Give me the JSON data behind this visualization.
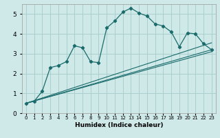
{
  "xlabel": "Humidex (Indice chaleur)",
  "bg_color": "#cfe8e8",
  "grid_color": "#aacfcf",
  "line_color": "#1a6b6b",
  "line1_x": [
    0,
    1,
    2,
    3,
    4,
    5,
    6,
    7,
    8,
    9,
    10,
    11,
    12,
    13,
    14,
    15,
    16,
    17,
    18,
    19,
    20,
    21,
    22,
    23
  ],
  "line1_y": [
    0.5,
    0.6,
    1.1,
    2.3,
    2.4,
    2.6,
    3.4,
    3.3,
    2.6,
    2.55,
    4.3,
    4.65,
    5.1,
    5.3,
    5.05,
    4.9,
    4.5,
    4.4,
    4.1,
    3.35,
    4.05,
    4.0,
    3.5,
    3.2
  ],
  "line2_x": [
    0,
    23
  ],
  "line2_y": [
    0.5,
    3.2
  ],
  "line3_x": [
    0,
    23
  ],
  "line3_y": [
    0.5,
    3.1
  ],
  "line4_x": [
    0,
    23
  ],
  "line4_y": [
    0.5,
    3.55
  ],
  "ylim": [
    0,
    5.5
  ],
  "yticks": [
    0,
    1,
    2,
    3,
    4,
    5
  ],
  "xlim": [
    -0.5,
    23.5
  ],
  "xtick_labels": [
    "0",
    "1",
    "2",
    "3",
    "4",
    "5",
    "6",
    "7",
    "8",
    "9",
    "10",
    "11",
    "12",
    "13",
    "14",
    "15",
    "16",
    "17",
    "18",
    "19",
    "20",
    "21",
    "22",
    "23"
  ]
}
